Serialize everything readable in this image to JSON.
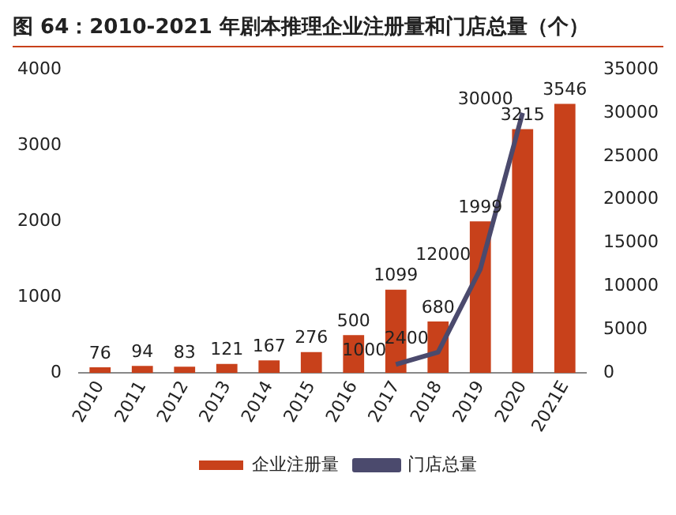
{
  "chart_data": {
    "type": "bar",
    "title": "图 64：2010-2021 年剧本推理企业注册量和门店总量（个）",
    "categories": [
      "2010",
      "2011",
      "2012",
      "2013",
      "2014",
      "2015",
      "2016",
      "2017",
      "2018",
      "2019",
      "2020",
      "2021E"
    ],
    "series": [
      {
        "name": "企业注册量",
        "color": "#c8411b",
        "values": [
          76,
          94,
          83,
          121,
          167,
          276,
          500,
          1099,
          680,
          1999,
          3215,
          3546
        ]
      },
      {
        "name": "门店总量",
        "type": "line",
        "axis": "y2",
        "color": "#4b4a6d",
        "values": [
          null,
          null,
          null,
          null,
          null,
          null,
          null,
          1000,
          2400,
          12000,
          30000,
          null
        ]
      }
    ],
    "ylim": [
      0,
      4000
    ],
    "yticks": [
      0,
      1000,
      2000,
      3000,
      4000
    ],
    "y2lim": [
      0,
      35000
    ],
    "y2ticks": [
      0,
      5000,
      10000,
      15000,
      20000,
      25000,
      30000,
      35000
    ],
    "grid": false,
    "legend": "bottom",
    "data_labels": true
  }
}
